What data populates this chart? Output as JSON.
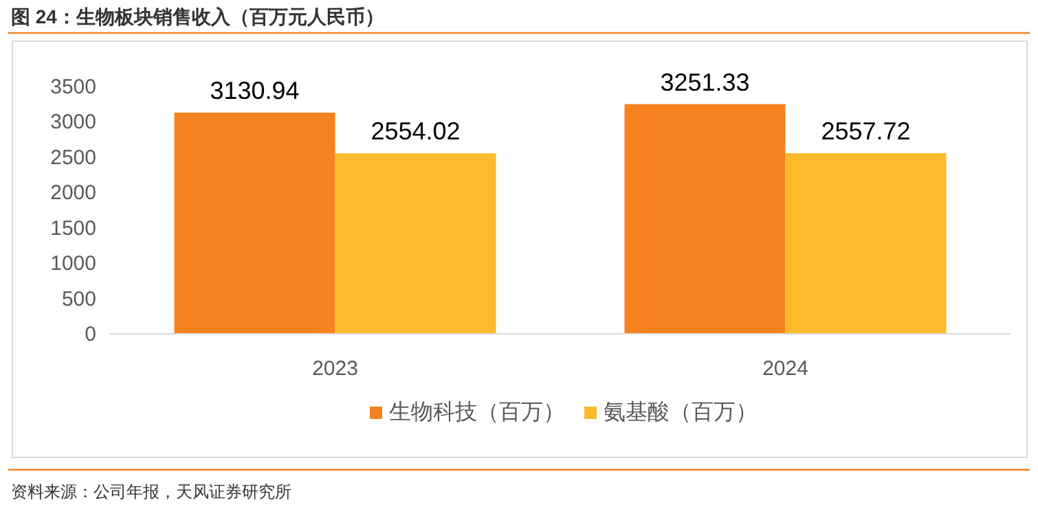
{
  "chart_data": {
    "type": "bar",
    "title": "图 24：生物板块销售收入（百万元人民币）",
    "categories": [
      "2023",
      "2024"
    ],
    "series": [
      {
        "name": "生物科技（百万）",
        "color": "#f5821f",
        "values": [
          3130.94,
          3251.33
        ]
      },
      {
        "name": "氨基酸（百万）",
        "color": "#fbbb2c",
        "values": [
          2554.02,
          2557.72
        ]
      }
    ],
    "ylim": [
      0,
      3500
    ],
    "yticks": [
      0,
      500,
      1000,
      1500,
      2000,
      2500,
      3000,
      3500
    ],
    "data_labels": true,
    "legend": "bottom",
    "grid": false,
    "annotations": [
      "资料来源：公司年报，天风证券研究所"
    ]
  }
}
